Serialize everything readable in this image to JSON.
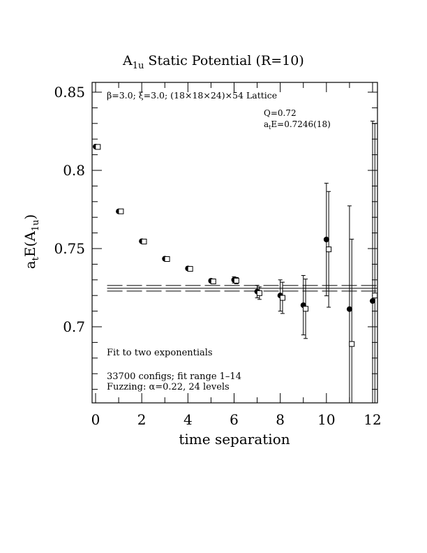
{
  "chart_data": {
    "type": "scatter",
    "title_main": "A",
    "title_sub": "1u",
    "title_rest": " Static Potential (R=10)",
    "lattice_info": "β=3.0; ξ=3.0; (18×18×24)×54 Lattice",
    "fit_quality": "Q=0.72",
    "fit_energy_pre": "a",
    "fit_energy_sub": "t",
    "fit_energy_rest": "E=0.7246(18)",
    "xlabel": "time separation",
    "ylabel_a": "a",
    "ylabel_t": "t",
    "ylabel_e": "E(A",
    "ylabel_sub": "1u",
    "ylabel_close": ")",
    "fit_note": "Fit to two exponentials",
    "config_note": "33700 configs; fit range 1–14",
    "fuzz_note": "Fuzzing: α=0.22, 24 levels",
    "xlim": [
      0,
      12
    ],
    "ylim": [
      0.651,
      0.856
    ],
    "x_ticks": [
      "0",
      "2",
      "4",
      "6",
      "8",
      "10",
      "12"
    ],
    "y_ticks": [
      "0.7",
      "0.75",
      "0.8",
      "0.85"
    ],
    "y_tick_values": [
      0.7,
      0.75,
      0.8,
      0.85
    ],
    "fit": {
      "value": 0.7246,
      "error": 0.0018
    },
    "series": [
      {
        "marker": "filled-circle",
        "points": [
          {
            "x": 0,
            "y": 0.8152,
            "err": 0.0005
          },
          {
            "x": 1,
            "y": 0.7738,
            "err": 0.0007
          },
          {
            "x": 2,
            "y": 0.7547,
            "err": 0.0008
          },
          {
            "x": 3,
            "y": 0.7435,
            "err": 0.001
          },
          {
            "x": 4,
            "y": 0.7373,
            "err": 0.001
          },
          {
            "x": 5,
            "y": 0.7294,
            "err": 0.0012
          },
          {
            "x": 6,
            "y": 0.73,
            "err": 0.002
          },
          {
            "x": 7,
            "y": 0.7225,
            "err": 0.004
          },
          {
            "x": 8,
            "y": 0.72,
            "err": 0.01
          },
          {
            "x": 9,
            "y": 0.7138,
            "err": 0.019
          },
          {
            "x": 10,
            "y": 0.7558,
            "err": 0.036
          },
          {
            "x": 11,
            "y": 0.7113,
            "err": 0.066
          },
          {
            "x": 12,
            "y": 0.7165,
            "err": 0.115
          }
        ]
      },
      {
        "marker": "open-square",
        "points": [
          {
            "x": 0.1,
            "y": 0.815,
            "err": 0.0005
          },
          {
            "x": 1.1,
            "y": 0.7738,
            "err": 0.0007
          },
          {
            "x": 2.1,
            "y": 0.7545,
            "err": 0.0008
          },
          {
            "x": 3.1,
            "y": 0.7433,
            "err": 0.001
          },
          {
            "x": 4.1,
            "y": 0.737,
            "err": 0.001
          },
          {
            "x": 5.1,
            "y": 0.729,
            "err": 0.0012
          },
          {
            "x": 6.1,
            "y": 0.7295,
            "err": 0.002
          },
          {
            "x": 7.1,
            "y": 0.7215,
            "err": 0.004
          },
          {
            "x": 8.1,
            "y": 0.7185,
            "err": 0.01
          },
          {
            "x": 9.1,
            "y": 0.7115,
            "err": 0.019
          },
          {
            "x": 10.1,
            "y": 0.7495,
            "err": 0.037
          },
          {
            "x": 11.1,
            "y": 0.689,
            "err": 0.067
          },
          {
            "x": 12.1,
            "y": 0.72,
            "err": 0.11
          }
        ]
      }
    ]
  }
}
